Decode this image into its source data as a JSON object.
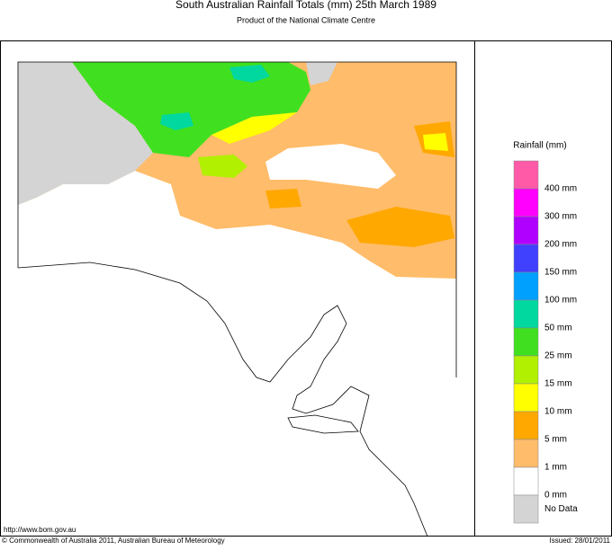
{
  "header": {
    "title": "South Australian Rainfall Totals (mm)   25th March 1989",
    "subtitle": "Product of the National Climate Centre"
  },
  "legend": {
    "title": "Rainfall (mm)",
    "swatches": [
      "#ff5aa8",
      "#ff00ff",
      "#b000ff",
      "#4040ff",
      "#00a0ff",
      "#00d8a0",
      "#40e020",
      "#b0f000",
      "#ffff00",
      "#ffa800",
      "#ffbc6a",
      "#ffffff",
      "#d4d4d4"
    ],
    "labels": [
      "400 mm",
      "300 mm",
      "200 mm",
      "150 mm",
      "100 mm",
      "50 mm",
      "25 mm",
      "15 mm",
      "10 mm",
      "5 mm",
      "1 mm",
      "0 mm",
      "No Data"
    ]
  },
  "footer": {
    "url": "http://www.bom.gov.au",
    "copyright": "© Commonwealth of Australia 2011, Australian Bureau of Meteorology",
    "issued": "Issued: 28/01/2011"
  }
}
